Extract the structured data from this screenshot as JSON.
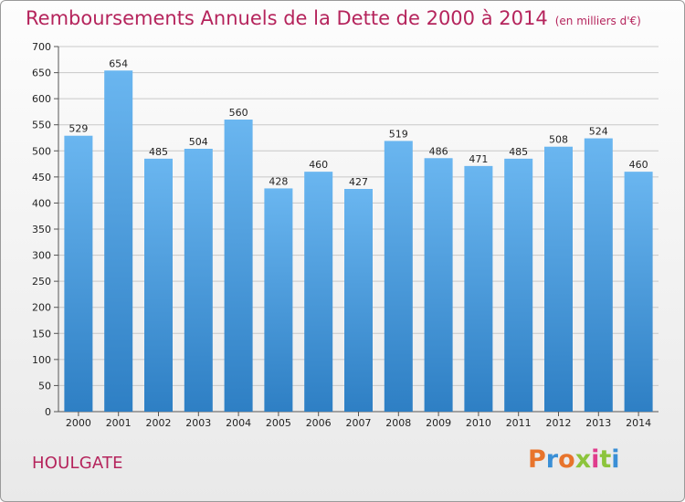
{
  "header": {
    "title": "Remboursements Annuels de la Dette de 2000 à 2014",
    "subtitle": "(en milliers d'€)"
  },
  "footer": {
    "city": "HOULGATE",
    "logo_text": "Proxiti",
    "logo_colors": [
      "#e8742c",
      "#3a8fd6",
      "#e8742c",
      "#8cc43c",
      "#e03c8c",
      "#8cc43c",
      "#3a8fd6"
    ]
  },
  "colors": {
    "bar_light": "#6ab6f0",
    "bar_dark": "#2e7fc4",
    "title": "#b5245c",
    "grid": "#c8c8c8"
  },
  "chart_data": {
    "type": "bar",
    "title": "Remboursements Annuels de la Dette de 2000 à 2014",
    "units": "(en milliers d'€)",
    "categories": [
      "2000",
      "2001",
      "2002",
      "2003",
      "2004",
      "2005",
      "2006",
      "2007",
      "2008",
      "2009",
      "2010",
      "2011",
      "2012",
      "2013",
      "2014"
    ],
    "values": [
      529,
      654,
      485,
      504,
      560,
      428,
      460,
      427,
      519,
      486,
      471,
      485,
      508,
      524,
      460
    ],
    "ylim": [
      0,
      700
    ],
    "yticks": [
      0,
      50,
      100,
      150,
      200,
      250,
      300,
      350,
      400,
      450,
      500,
      550,
      600,
      650,
      700
    ],
    "xlabel": "",
    "ylabel": "",
    "grid": true
  }
}
